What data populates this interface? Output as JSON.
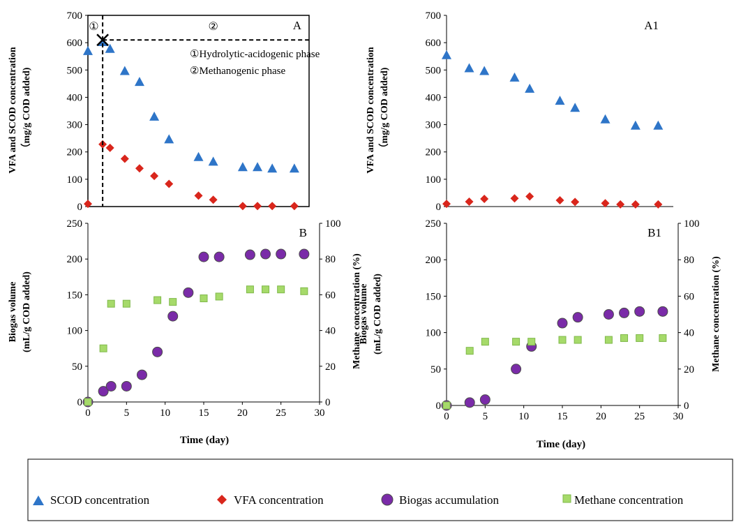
{
  "colors": {
    "scod": "#2E75C8",
    "vfa": "#D9261C",
    "biogas_fill": "#7A2BA8",
    "biogas_stroke": "#4A4A4A",
    "methane": "#A6DA6A",
    "methane_stroke": "#7FB84A",
    "axis": "#000000"
  },
  "shared": {
    "time_label": "Time (day)",
    "left_ylabel_top_line1": "VFA and SCOD concentration",
    "left_ylabel_top_line2": "（mg/g COD added)",
    "left_ylabel_bottom_line1": "Biogas volume",
    "left_ylabel_bottom_line2": "(mL/g COD added)",
    "right_ylabel_bottom": "Methane concentration (%)"
  },
  "annotations": {
    "phase1_marker": "①",
    "phase2_marker": "②",
    "phase1_legend": "①Hydrolytic-acidogenic phase",
    "phase2_legend": "②Methanogenic phase"
  },
  "legend": {
    "scod": "SCOD concentration",
    "vfa": "VFA concentration",
    "biogas": "Biogas accumulation",
    "methane": "Methane concentration"
  },
  "chart_data": [
    {
      "panel": "A",
      "type": "scatter",
      "xlim": [
        0,
        30
      ],
      "ylim": [
        0,
        700
      ],
      "yticks": [
        0,
        100,
        200,
        300,
        400,
        500,
        600,
        700
      ],
      "series": [
        {
          "name": "SCOD concentration",
          "marker": "triangle",
          "x": [
            0,
            2,
            3,
            5,
            7,
            9,
            11,
            15,
            17,
            21,
            23,
            25,
            28
          ],
          "y": [
            570,
            603,
            578,
            497,
            457,
            330,
            247,
            182,
            165,
            145,
            145,
            140,
            140
          ]
        },
        {
          "name": "VFA concentration",
          "marker": "diamond",
          "x": [
            0,
            2,
            3,
            5,
            7,
            9,
            11,
            15,
            17,
            21,
            23,
            25,
            28
          ],
          "y": [
            10,
            228,
            215,
            175,
            140,
            112,
            83,
            40,
            25,
            2,
            2,
            2,
            2
          ]
        }
      ]
    },
    {
      "panel": "A1",
      "type": "scatter",
      "xlim": [
        0,
        30
      ],
      "ylim": [
        0,
        700
      ],
      "yticks": [
        0,
        100,
        200,
        300,
        400,
        500,
        600,
        700
      ],
      "series": [
        {
          "name": "SCOD concentration",
          "marker": "triangle",
          "x": [
            0,
            3,
            5,
            9,
            11,
            15,
            17,
            21,
            25,
            28
          ],
          "y": [
            555,
            507,
            497,
            473,
            432,
            388,
            362,
            320,
            297,
            297
          ]
        },
        {
          "name": "VFA concentration",
          "marker": "diamond",
          "x": [
            0,
            3,
            5,
            9,
            11,
            15,
            17,
            21,
            23,
            25,
            28
          ],
          "y": [
            10,
            18,
            28,
            30,
            37,
            23,
            17,
            12,
            8,
            8,
            8
          ]
        }
      ]
    },
    {
      "panel": "B",
      "type": "scatter",
      "xlim": [
        0,
        30
      ],
      "xticks": [
        0,
        5,
        10,
        15,
        20,
        25,
        30
      ],
      "ylim": [
        0,
        250
      ],
      "yticks": [
        0,
        50,
        100,
        150,
        200,
        250
      ],
      "y2lim": [
        0,
        100
      ],
      "y2ticks": [
        0,
        20,
        40,
        60,
        80,
        100
      ],
      "series": [
        {
          "name": "Biogas accumulation",
          "marker": "circle",
          "axis": "left",
          "x": [
            0,
            2,
            3,
            5,
            7,
            9,
            11,
            13,
            15,
            17,
            21,
            23,
            25,
            28
          ],
          "y": [
            0,
            15,
            22,
            22,
            38,
            70,
            120,
            153,
            203,
            203,
            206,
            207,
            207,
            207
          ]
        },
        {
          "name": "Methane concentration",
          "marker": "square",
          "axis": "right",
          "x": [
            0,
            2,
            3,
            5,
            9,
            11,
            15,
            17,
            21,
            23,
            25,
            28
          ],
          "y": [
            0,
            30,
            55,
            55,
            57,
            56,
            58,
            59,
            63,
            63,
            63,
            62
          ]
        }
      ]
    },
    {
      "panel": "B1",
      "type": "scatter",
      "xlim": [
        0,
        30
      ],
      "xticks": [
        0,
        5,
        10,
        15,
        20,
        25,
        30
      ],
      "ylim": [
        0,
        250
      ],
      "yticks": [
        0,
        50,
        100,
        150,
        200,
        250
      ],
      "y2lim": [
        0,
        100
      ],
      "y2ticks": [
        0,
        20,
        40,
        60,
        80,
        100
      ],
      "series": [
        {
          "name": "Biogas accumulation",
          "marker": "circle",
          "axis": "left",
          "x": [
            0,
            3,
            5,
            9,
            11,
            15,
            17,
            21,
            23,
            25,
            28
          ],
          "y": [
            0,
            4,
            8,
            50,
            81,
            113,
            121,
            125,
            127,
            129,
            129
          ]
        },
        {
          "name": "Methane concentration",
          "marker": "square",
          "axis": "right",
          "x": [
            0,
            3,
            5,
            9,
            11,
            15,
            17,
            21,
            23,
            25,
            28
          ],
          "y": [
            0,
            30,
            35,
            35,
            35,
            36,
            36,
            36,
            37,
            37,
            37
          ]
        }
      ]
    }
  ]
}
